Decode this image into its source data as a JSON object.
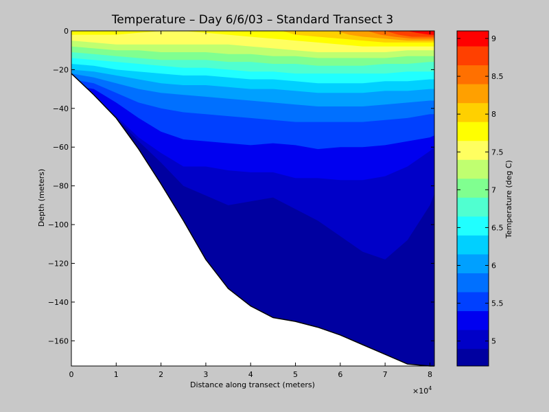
{
  "chart_data": {
    "type": "contour",
    "title": "Temperature – Day 6/6/03 – Standard Transect 3",
    "xlabel": "Distance along transect (meters)",
    "ylabel": "Depth (meters)",
    "x_multiplier": "×10",
    "x_multiplier_exp": "4",
    "xlim": [
      0,
      8.1
    ],
    "ylim": [
      -173,
      0
    ],
    "x_ticks": [
      "0",
      "1",
      "2",
      "3",
      "4",
      "5",
      "6",
      "7",
      "8"
    ],
    "y_ticks": [
      "0",
      "−20",
      "−40",
      "−60",
      "−80",
      "−100",
      "−120",
      "−140",
      "−160"
    ],
    "colorbar": {
      "label": "Temperature (deg C)",
      "range": [
        4.67,
        9.1
      ],
      "ticks": [
        "5",
        "5.5",
        "6",
        "6.5",
        "7",
        "7.5",
        "8",
        "8.5",
        "9"
      ],
      "levels": [
        4.67,
        4.9,
        5.15,
        5.4,
        5.65,
        5.9,
        6.15,
        6.4,
        6.65,
        6.9,
        7.15,
        7.4,
        7.65,
        7.9,
        8.15,
        8.4,
        8.65,
        8.9,
        9.1
      ],
      "colors": [
        "#0000a0",
        "#0000c8",
        "#0000f0",
        "#0040ff",
        "#0070ff",
        "#00a0ff",
        "#00d0ff",
        "#20ffff",
        "#50ffd0",
        "#80ff90",
        "#c0ff70",
        "#ffff60",
        "#ffff00",
        "#ffd000",
        "#ffa000",
        "#ff7000",
        "#ff4000",
        "#ff0000",
        "#c00000"
      ]
    },
    "bathymetry": {
      "x": [
        0,
        0.5,
        1.0,
        1.5,
        2.0,
        2.5,
        3.0,
        3.5,
        4.0,
        4.5,
        5.0,
        5.5,
        6.0,
        6.5,
        7.0,
        7.5,
        8.0,
        8.1
      ],
      "depth": [
        -22,
        -33,
        -45,
        -61,
        -79,
        -98,
        -118,
        -133,
        -142,
        -148,
        -150,
        -153,
        -157,
        -162,
        -167,
        -172,
        -173,
        -173
      ]
    },
    "isotherms": [
      {
        "level": 4.9,
        "x": [
          0.5,
          1.0,
          1.5,
          2.0,
          2.5,
          3.0,
          3.5,
          4.0,
          4.5,
          5.0,
          5.5,
          6.0,
          6.5,
          7.0,
          7.5,
          8.0,
          8.1
        ],
        "depth": [
          -36,
          -45,
          -57,
          -68,
          -80,
          -85,
          -90,
          -88,
          -86,
          -92,
          -98,
          -106,
          -114,
          -118,
          -108,
          -90,
          -84
        ]
      },
      {
        "level": 5.15,
        "x": [
          0,
          0.5,
          1.0,
          1.5,
          2.0,
          2.5,
          3.0,
          3.5,
          4.0,
          4.5,
          5.0,
          5.5,
          6.0,
          6.5,
          7.0,
          7.5,
          8.0,
          8.1
        ],
        "depth": [
          -32,
          -34,
          -44,
          -55,
          -63,
          -70,
          -70,
          -72,
          -73,
          -73,
          -76,
          -76,
          -77,
          -77,
          -75,
          -70,
          -62,
          -60
        ]
      },
      {
        "level": 5.4,
        "x": [
          0,
          0.5,
          1.0,
          1.5,
          2.0,
          2.5,
          3.0,
          3.5,
          4.0,
          4.5,
          5.0,
          5.5,
          6.0,
          6.5,
          7.0,
          7.5,
          8.0,
          8.1
        ],
        "depth": [
          -28,
          -30,
          -37,
          -45,
          -52,
          -56,
          -57,
          -58,
          -59,
          -58,
          -59,
          -61,
          -60,
          -60,
          -59,
          -57,
          -55,
          -54
        ]
      },
      {
        "level": 5.65,
        "x": [
          0,
          0.5,
          1.0,
          1.5,
          2.0,
          2.5,
          3.0,
          3.5,
          4.0,
          4.5,
          5.0,
          5.5,
          6.0,
          6.5,
          7.0,
          7.5,
          8.0,
          8.1
        ],
        "depth": [
          -25,
          -27,
          -32,
          -37,
          -40,
          -42,
          -43,
          -44,
          -45,
          -46,
          -47,
          -47,
          -47,
          -47,
          -46,
          -45,
          -43,
          -43
        ]
      },
      {
        "level": 5.9,
        "x": [
          0,
          0.5,
          1.0,
          1.5,
          2.0,
          2.5,
          3.0,
          3.5,
          4.0,
          4.5,
          5.0,
          5.5,
          6.0,
          6.5,
          7.0,
          7.5,
          8.0,
          8.1
        ],
        "depth": [
          -22,
          -24,
          -27,
          -30,
          -32,
          -33,
          -34,
          -35,
          -36,
          -37,
          -38,
          -39,
          -39,
          -39,
          -38,
          -37,
          -36,
          -36
        ]
      },
      {
        "level": 6.15,
        "x": [
          0,
          0.5,
          1.0,
          1.5,
          2.0,
          2.5,
          3.0,
          3.5,
          4.0,
          4.5,
          5.0,
          5.5,
          6.0,
          6.5,
          7.0,
          7.5,
          8.0,
          8.1
        ],
        "depth": [
          -20,
          -21,
          -23,
          -25,
          -27,
          -28,
          -28,
          -29,
          -30,
          -30,
          -31,
          -32,
          -32,
          -32,
          -31,
          -31,
          -30,
          -30
        ]
      },
      {
        "level": 6.4,
        "x": [
          0,
          0.5,
          1.0,
          1.5,
          2.0,
          2.5,
          3.0,
          3.5,
          4.0,
          4.5,
          5.0,
          5.5,
          6.0,
          6.5,
          7.0,
          7.5,
          8.0,
          8.1
        ],
        "depth": [
          -17,
          -18,
          -20,
          -21,
          -22,
          -23,
          -23,
          -24,
          -25,
          -25,
          -26,
          -27,
          -27,
          -27,
          -26,
          -26,
          -25,
          -25
        ]
      },
      {
        "level": 6.65,
        "x": [
          0,
          0.5,
          1.0,
          1.5,
          2.0,
          2.5,
          3.0,
          3.5,
          4.0,
          4.5,
          5.0,
          5.5,
          6.0,
          6.5,
          7.0,
          7.5,
          8.0,
          8.1
        ],
        "depth": [
          -14,
          -15,
          -16,
          -17,
          -18,
          -19,
          -19,
          -20,
          -21,
          -21,
          -22,
          -22,
          -22,
          -22,
          -22,
          -21,
          -21,
          -21
        ]
      },
      {
        "level": 6.9,
        "x": [
          0,
          0.5,
          1.0,
          1.5,
          2.0,
          2.5,
          3.0,
          3.5,
          4.0,
          4.5,
          5.0,
          5.5,
          6.0,
          6.5,
          7.0,
          7.5,
          8.0,
          8.1
        ],
        "depth": [
          -11,
          -12,
          -13,
          -14,
          -15,
          -15,
          -15,
          -16,
          -16,
          -17,
          -17,
          -18,
          -18,
          -18,
          -17,
          -17,
          -16,
          -16
        ]
      },
      {
        "level": 7.15,
        "x": [
          0,
          0.5,
          1.0,
          1.5,
          2.0,
          2.5,
          3.0,
          3.5,
          4.0,
          4.5,
          5.0,
          5.5,
          6.0,
          6.5,
          7.0,
          7.5,
          8.0,
          8.1
        ],
        "depth": [
          -8,
          -9,
          -10,
          -10,
          -11,
          -11,
          -11,
          -12,
          -12,
          -13,
          -13,
          -14,
          -14,
          -14,
          -14,
          -13,
          -13,
          -13
        ]
      },
      {
        "level": 7.4,
        "x": [
          0,
          0.5,
          1.0,
          1.5,
          2.0,
          2.5,
          3.0,
          3.5,
          4.0,
          4.5,
          5.0,
          5.5,
          6.0,
          6.5,
          7.0,
          7.5,
          8.0,
          8.1
        ],
        "depth": [
          -5,
          -6,
          -7,
          -7,
          -7,
          -7,
          -7,
          -7,
          -8,
          -9,
          -10,
          -11,
          -11,
          -11,
          -11,
          -10,
          -10,
          -10
        ]
      },
      {
        "level": 7.65,
        "x": [
          0,
          0.5,
          1.0,
          1.5,
          2.0,
          2.5,
          3.0,
          3.5,
          4.0,
          4.5,
          5.0,
          5.5,
          6.0,
          6.5,
          7.0,
          7.5,
          8.0,
          8.1
        ],
        "depth": [
          -2,
          -2,
          -2,
          -1,
          0,
          0,
          -1,
          -2,
          -3,
          -4,
          -5,
          -6,
          -7,
          -8,
          -8,
          -8,
          -8,
          -8
        ]
      },
      {
        "level": 7.9,
        "x": [
          4.7,
          5.0,
          5.5,
          6.0,
          6.5,
          7.0,
          7.5,
          8.0,
          8.1
        ],
        "depth": [
          0,
          -2,
          -3,
          -4,
          -5,
          -6,
          -6,
          -6,
          -6
        ]
      },
      {
        "level": 8.15,
        "x": [
          5.9,
          6.2,
          6.5,
          7.0,
          7.5,
          8.0,
          8.1
        ],
        "depth": [
          0,
          -2,
          -3,
          -4,
          -5,
          -5,
          -5
        ]
      },
      {
        "level": 8.4,
        "x": [
          6.6,
          6.9,
          7.2,
          7.6,
          8.0,
          8.1
        ],
        "depth": [
          0,
          -2,
          -3,
          -4,
          -4,
          -4
        ]
      },
      {
        "level": 8.65,
        "x": [
          7.0,
          7.3,
          7.6,
          8.0,
          8.1
        ],
        "depth": [
          0,
          -2,
          -3,
          -3,
          -3
        ]
      },
      {
        "level": 8.9,
        "x": [
          7.5,
          7.7,
          8.0,
          8.1
        ],
        "depth": [
          0,
          -1,
          -2,
          -2
        ]
      }
    ]
  }
}
